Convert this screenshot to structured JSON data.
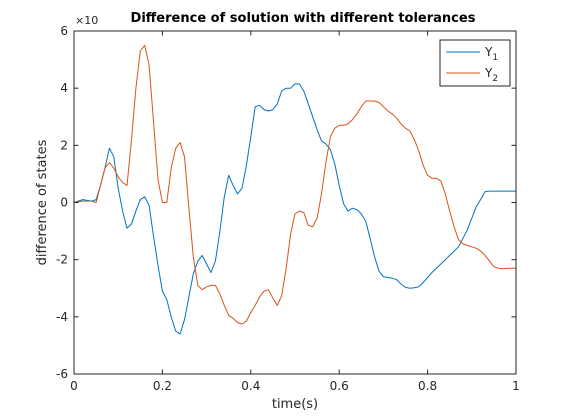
{
  "chart_data": {
    "type": "line",
    "title": "Difference of solution with different tolerances",
    "xlabel": "time(s)",
    "ylabel": "difference of states",
    "xlim": [
      0,
      1
    ],
    "ylim": [
      -6,
      6
    ],
    "xticks": [
      "0",
      "0.2",
      "0.4",
      "0.6",
      "0.8",
      "1"
    ],
    "yticks": [
      "-6",
      "-4",
      "-2",
      "0",
      "2",
      "4",
      "6"
    ],
    "y_exponent_label": "×10",
    "grid": false,
    "legend_position": "top-right",
    "series": [
      {
        "name_base": "Y",
        "name_sub": "1",
        "color": "#0072BD",
        "x": [
          0,
          0.02,
          0.04,
          0.05,
          0.06,
          0.07,
          0.08,
          0.09,
          0.1,
          0.11,
          0.12,
          0.13,
          0.14,
          0.15,
          0.16,
          0.17,
          0.18,
          0.19,
          0.2,
          0.21,
          0.22,
          0.23,
          0.24,
          0.25,
          0.26,
          0.27,
          0.28,
          0.29,
          0.3,
          0.31,
          0.32,
          0.33,
          0.34,
          0.35,
          0.36,
          0.37,
          0.38,
          0.39,
          0.4,
          0.41,
          0.42,
          0.43,
          0.44,
          0.45,
          0.46,
          0.47,
          0.48,
          0.49,
          0.5,
          0.51,
          0.52,
          0.53,
          0.54,
          0.55,
          0.56,
          0.57,
          0.58,
          0.59,
          0.6,
          0.61,
          0.62,
          0.63,
          0.64,
          0.65,
          0.66,
          0.67,
          0.68,
          0.69,
          0.7,
          0.71,
          0.72,
          0.73,
          0.74,
          0.75,
          0.76,
          0.77,
          0.78,
          0.79,
          0.8,
          0.81,
          0.82,
          0.83,
          0.84,
          0.85,
          0.86,
          0.87,
          0.88,
          0.89,
          0.9,
          0.91,
          0.92,
          0.93,
          0.94,
          0.95,
          0.96,
          0.97,
          0.98,
          0.99,
          1.0
        ],
        "y": [
          0,
          0.1,
          0.05,
          0.1,
          0.6,
          1.2,
          1.9,
          1.6,
          0.5,
          -0.3,
          -0.9,
          -0.75,
          -0.3,
          0.1,
          0.2,
          -0.1,
          -1.2,
          -2.2,
          -3.1,
          -3.4,
          -4.0,
          -4.5,
          -4.6,
          -4.1,
          -3.3,
          -2.5,
          -2.05,
          -1.85,
          -2.15,
          -2.45,
          -2.05,
          -1.0,
          0.2,
          0.95,
          0.6,
          0.3,
          0.5,
          1.3,
          2.3,
          3.35,
          3.4,
          3.25,
          3.2,
          3.25,
          3.45,
          3.9,
          4.0,
          4.0,
          4.15,
          4.15,
          3.9,
          3.45,
          3.0,
          2.55,
          2.15,
          2.05,
          1.85,
          1.35,
          0.6,
          -0.05,
          -0.3,
          -0.2,
          -0.25,
          -0.4,
          -0.65,
          -1.25,
          -1.9,
          -2.4,
          -2.6,
          -2.62,
          -2.65,
          -2.7,
          -2.85,
          -2.97,
          -3.0,
          -2.98,
          -2.95,
          -2.8,
          -2.62,
          -2.45,
          -2.3,
          -2.15,
          -2.0,
          -1.85,
          -1.7,
          -1.55,
          -1.25,
          -0.95,
          -0.55,
          -0.15,
          0.1,
          0.38,
          0.4,
          0.4,
          0.4,
          0.4,
          0.4,
          0.4,
          0.4
        ]
      },
      {
        "name_base": "Y",
        "name_sub": "2",
        "color": "#D95319",
        "x": [
          0,
          0.02,
          0.04,
          0.05,
          0.06,
          0.07,
          0.08,
          0.09,
          0.1,
          0.11,
          0.12,
          0.13,
          0.14,
          0.15,
          0.16,
          0.17,
          0.18,
          0.19,
          0.2,
          0.21,
          0.22,
          0.23,
          0.24,
          0.25,
          0.26,
          0.27,
          0.28,
          0.29,
          0.3,
          0.31,
          0.32,
          0.33,
          0.34,
          0.35,
          0.36,
          0.37,
          0.38,
          0.39,
          0.4,
          0.41,
          0.42,
          0.43,
          0.44,
          0.45,
          0.46,
          0.47,
          0.48,
          0.49,
          0.5,
          0.51,
          0.52,
          0.53,
          0.54,
          0.55,
          0.56,
          0.57,
          0.58,
          0.59,
          0.6,
          0.61,
          0.62,
          0.63,
          0.64,
          0.65,
          0.66,
          0.67,
          0.68,
          0.69,
          0.7,
          0.71,
          0.72,
          0.73,
          0.74,
          0.75,
          0.76,
          0.77,
          0.78,
          0.79,
          0.8,
          0.81,
          0.82,
          0.83,
          0.84,
          0.85,
          0.86,
          0.87,
          0.88,
          0.89,
          0.9,
          0.91,
          0.92,
          0.93,
          0.94,
          0.95,
          0.96,
          0.97,
          0.98,
          0.99,
          1.0
        ],
        "y": [
          0,
          0.05,
          0.05,
          0.0,
          0.6,
          1.2,
          1.4,
          1.2,
          0.9,
          0.7,
          0.6,
          2.2,
          4.0,
          5.3,
          5.5,
          4.8,
          2.8,
          0.8,
          0.0,
          0.0,
          1.2,
          1.9,
          2.1,
          1.6,
          -0.2,
          -1.9,
          -2.9,
          -3.05,
          -2.95,
          -2.9,
          -2.9,
          -3.2,
          -3.6,
          -3.95,
          -4.05,
          -4.2,
          -4.25,
          -4.15,
          -3.85,
          -3.6,
          -3.3,
          -3.1,
          -3.05,
          -3.35,
          -3.6,
          -3.25,
          -2.3,
          -1.1,
          -0.4,
          -0.3,
          -0.35,
          -0.8,
          -0.85,
          -0.55,
          0.3,
          1.4,
          2.3,
          2.6,
          2.7,
          2.7,
          2.75,
          2.9,
          3.1,
          3.35,
          3.55,
          3.55,
          3.55,
          3.5,
          3.35,
          3.2,
          3.1,
          2.95,
          2.75,
          2.6,
          2.5,
          2.2,
          1.8,
          1.3,
          0.95,
          0.85,
          0.85,
          0.75,
          0.3,
          -0.3,
          -0.85,
          -1.3,
          -1.45,
          -1.5,
          -1.55,
          -1.6,
          -1.7,
          -1.85,
          -2.05,
          -2.25,
          -2.3,
          -2.32,
          -2.3,
          -2.3,
          -2.3
        ]
      }
    ]
  }
}
